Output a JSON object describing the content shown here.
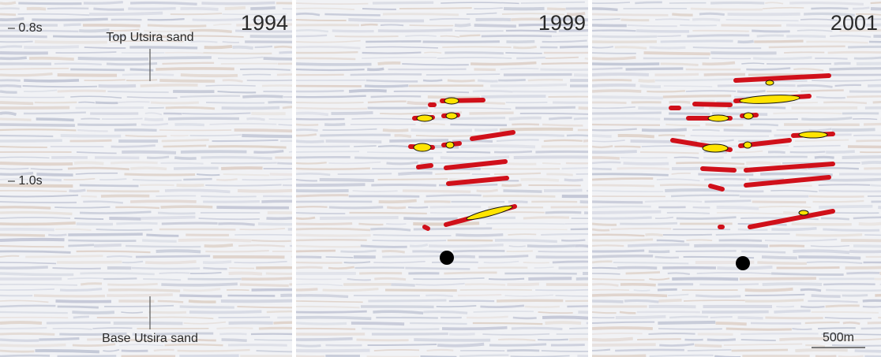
{
  "panels": [
    {
      "year": "1994"
    },
    {
      "year": "1999"
    },
    {
      "year": "2001"
    }
  ],
  "time_labels": [
    "– 0.8s",
    "– 1.0s"
  ],
  "annotations": {
    "top": "Top Utsira sand",
    "base": "Base Utsira sand"
  },
  "scale_bar": "500m"
}
